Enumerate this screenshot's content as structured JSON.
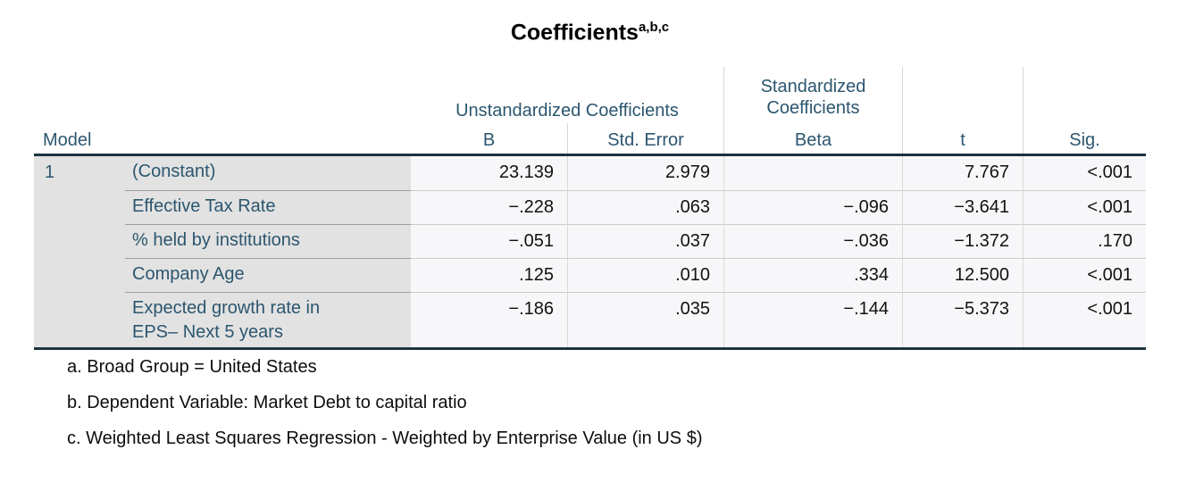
{
  "title": {
    "text": "Coefficients",
    "superscript": "a,b,c"
  },
  "chart_data": {
    "type": "table",
    "title": "Coefficients",
    "stub_header": "Model",
    "model_number": "1",
    "column_groups": [
      {
        "label": "Unstandardized Coefficients"
      },
      {
        "label": "Standardized Coefficients"
      }
    ],
    "columns": {
      "b": "B",
      "se": "Std. Error",
      "beta": "Beta",
      "t": "t",
      "sig": "Sig."
    },
    "rows": [
      {
        "label": "(Constant)",
        "b": "23.139",
        "se": "2.979",
        "beta": "",
        "t": "7.767",
        "sig": "<.001"
      },
      {
        "label": "Effective Tax Rate",
        "b": "−.228",
        "se": ".063",
        "beta": "−.096",
        "t": "−3.641",
        "sig": "<.001"
      },
      {
        "label": "% held by institutions",
        "b": "−.051",
        "se": ".037",
        "beta": "−.036",
        "t": "−1.372",
        "sig": ".170"
      },
      {
        "label": "Company Age",
        "b": ".125",
        "se": ".010",
        "beta": ".334",
        "t": "12.500",
        "sig": "<.001"
      },
      {
        "label": "Expected growth rate in EPS– Next 5 years",
        "b": "−.186",
        "se": ".035",
        "beta": "−.144",
        "t": "−5.373",
        "sig": "<.001"
      }
    ],
    "footnotes": [
      "a. Broad Group = United States",
      "b. Dependent Variable: Market Debt to capital ratio",
      "c. Weighted Least Squares Regression - Weighted by Enterprise Value (in US $)"
    ]
  },
  "colors": {
    "header_text": "#2c566f",
    "data_text": "#111111",
    "stub_background": "#e2e2e2",
    "data_background": "#f7f7f9",
    "heavy_rule": "#1d3340",
    "stub_separator": "#9e9e9e",
    "data_separator": "#cccccc",
    "column_divider": "#d6d6d6"
  }
}
